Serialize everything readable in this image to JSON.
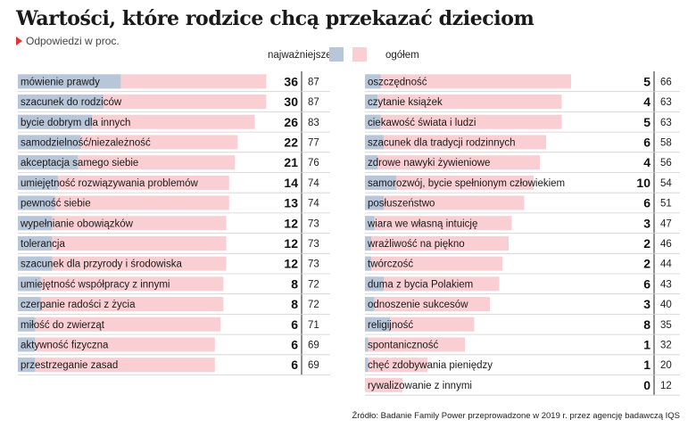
{
  "title": "Wartości, które rodzice chcą przekazać dzieciom",
  "subtitle": "Odpowiedzi w proc.",
  "colors": {
    "najwazniejsze": "#b7c6d9",
    "ogolem": "#f9cfd3",
    "accent": "#e3342f",
    "rule": "#d0d0d0",
    "divider": "#222222"
  },
  "source": "Źródło: Badanie Family Power przeprowadzone w 2019 r. przez agencję badawczą IQS",
  "chart_data": {
    "type": "bar",
    "title": "Wartości, które rodzice chcą przekazać dzieciom",
    "subtitle": "Odpowiedzi w proc.",
    "legend": {
      "placement": "top",
      "entries": [
        "najważniejsze",
        "ogółem"
      ]
    },
    "xlim": [
      0,
      100
    ],
    "series": [
      {
        "name": "najważniejsze"
      },
      {
        "name": "ogółem"
      }
    ],
    "panels": [
      {
        "categories": [
          "mówienie prawdy",
          "szacunek do rodziców",
          "bycie dobrym dla innych",
          "samodzielność/niezależność",
          "akceptacja samego siebie",
          "umiejętność rozwiązywania problemów",
          "pewność siebie",
          "wypełnianie obowiązków",
          "tolerancja",
          "szacunek dla przyrody i środowiska",
          "umiejętność współpracy z innymi",
          "czerpanie radości z życia",
          "miłość do zwierząt",
          "aktywność fizyczna",
          "przestrzeganie zasad"
        ],
        "najwazniejsze": [
          36,
          30,
          26,
          22,
          21,
          14,
          13,
          12,
          12,
          12,
          8,
          8,
          6,
          6,
          6
        ],
        "ogolem": [
          87,
          87,
          83,
          77,
          76,
          74,
          74,
          73,
          73,
          73,
          72,
          72,
          71,
          69,
          69
        ]
      },
      {
        "categories": [
          "oszczędność",
          "czytanie książek",
          "ciekawość świata i ludzi",
          "szacunek dla tradycji rodzinnych",
          "zdrowe nawyki żywieniowe",
          "samorozwój, bycie spełnionym człowiekiem",
          "posłuszeństwo",
          "wiara we własną intuicję",
          "wrażliwość na piękno",
          "twórczość",
          "duma z bycia Polakiem",
          "odnoszenie sukcesów",
          "religijność",
          "spontaniczność",
          "chęć zdobywania pieniędzy",
          "rywalizowanie z innymi"
        ],
        "najwazniejsze": [
          5,
          4,
          5,
          6,
          4,
          10,
          6,
          3,
          2,
          2,
          6,
          3,
          8,
          1,
          1,
          0
        ],
        "ogolem": [
          66,
          63,
          63,
          58,
          56,
          54,
          51,
          47,
          46,
          44,
          43,
          40,
          35,
          32,
          20,
          12
        ]
      }
    ]
  }
}
